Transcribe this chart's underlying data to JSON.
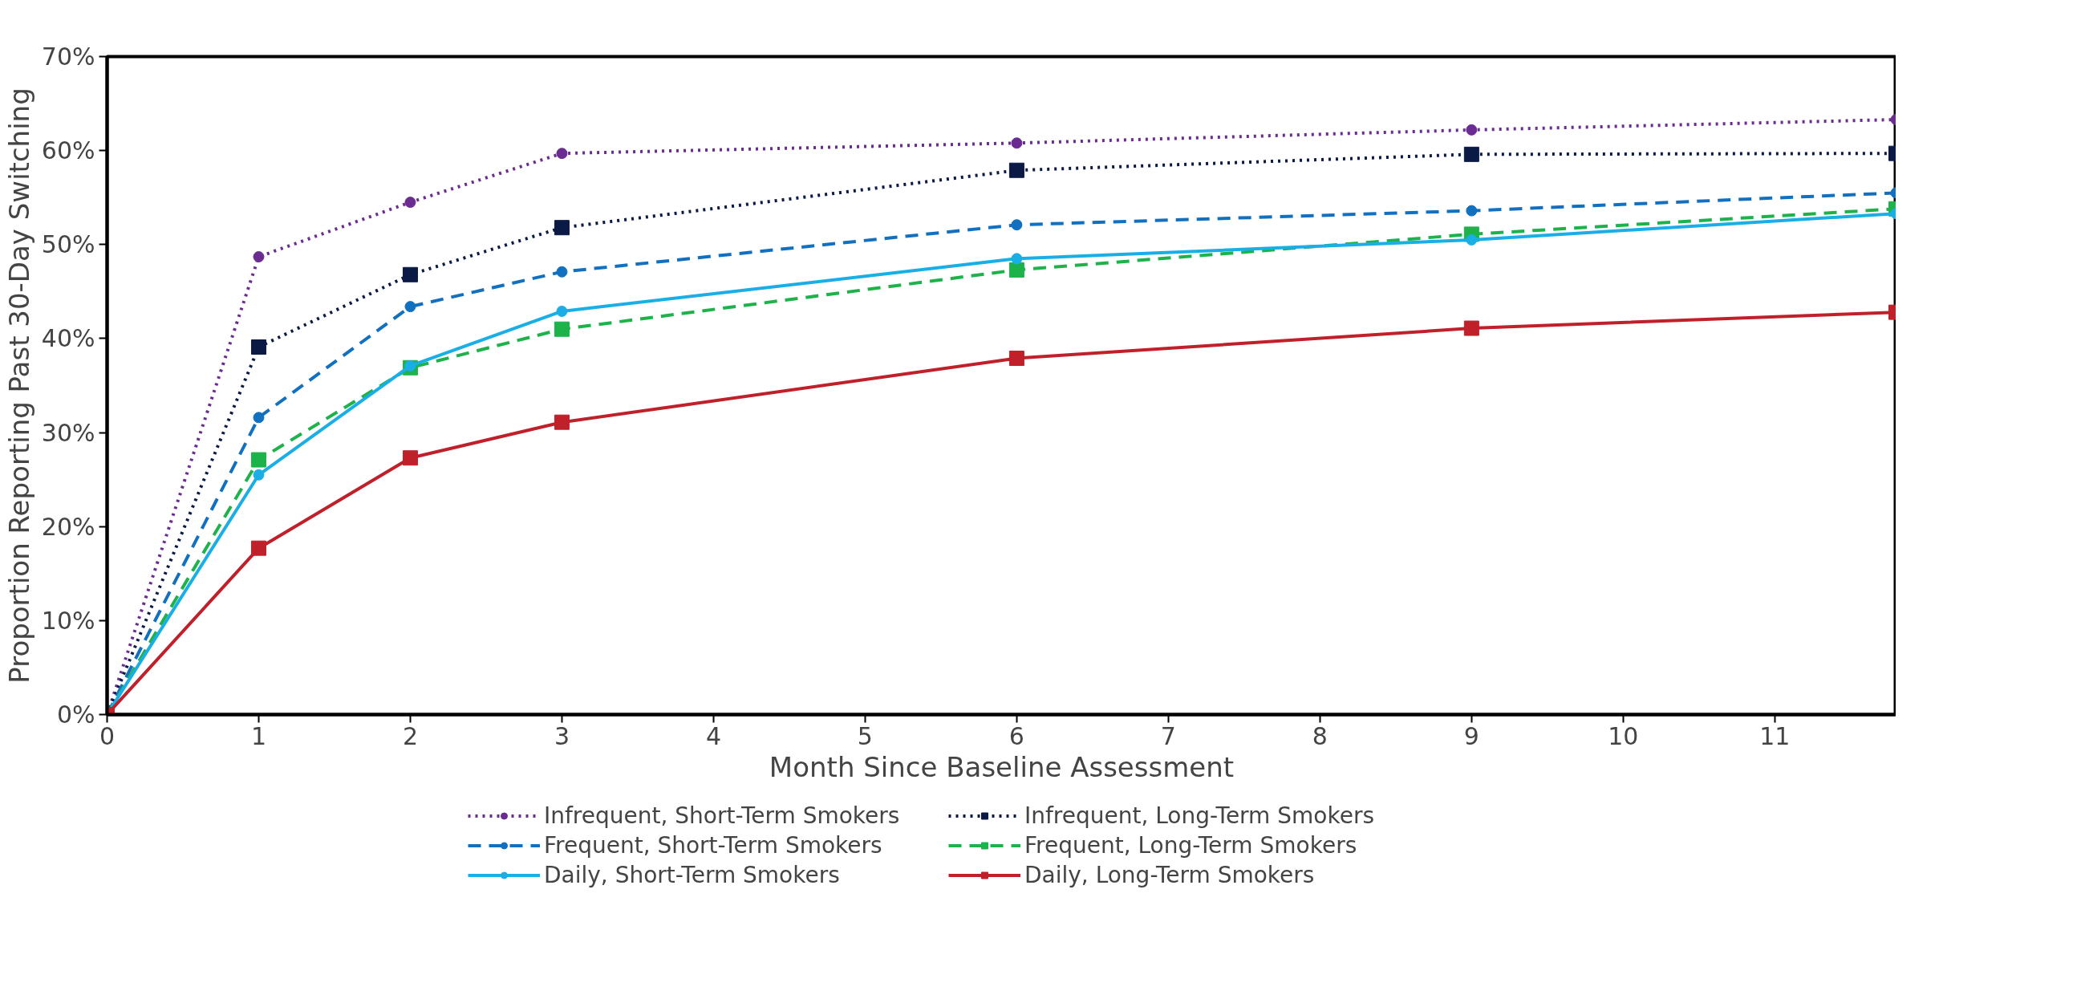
{
  "chart_data": {
    "type": "line",
    "xlabel": "Month Since Baseline Assessment",
    "ylabel": "Proportion Reporting Past 30-Day Switching",
    "x": [
      0,
      1,
      2,
      3,
      6,
      9,
      11.8
    ],
    "series": [
      {
        "name": "Infrequent, Short-Term Smokers",
        "color": "#6a2c91",
        "marker": "circle",
        "line_style": "dotted",
        "values": [
          0,
          48.7,
          54.5,
          59.7,
          60.8,
          62.2,
          63.3
        ]
      },
      {
        "name": "Infrequent, Long-Term Smokers",
        "color": "#0b1a45",
        "marker": "square",
        "line_style": "dotted",
        "values": [
          0,
          39.1,
          46.8,
          51.8,
          57.9,
          59.6,
          59.7
        ]
      },
      {
        "name": "Frequent, Short-Term Smokers",
        "color": "#1170bf",
        "marker": "circle",
        "line_style": "dashed",
        "values": [
          0,
          31.6,
          43.4,
          47.1,
          52.1,
          53.6,
          55.5
        ]
      },
      {
        "name": "Frequent, Long-Term Smokers",
        "color": "#1db34a",
        "marker": "square",
        "line_style": "dashed",
        "values": [
          0,
          27.1,
          36.9,
          41.0,
          47.3,
          51.1,
          53.8
        ]
      },
      {
        "name": "Daily, Short-Term Smokers",
        "color": "#1aaee6",
        "marker": "circle",
        "line_style": "solid",
        "values": [
          0,
          25.5,
          37.1,
          42.9,
          48.5,
          50.5,
          53.3
        ]
      },
      {
        "name": "Daily, Long-Term Smokers",
        "color": "#c0202a",
        "marker": "square",
        "line_style": "solid",
        "values": [
          0,
          17.7,
          27.3,
          31.1,
          37.9,
          41.1,
          42.8
        ]
      }
    ],
    "xlim": [
      0,
      11.8
    ],
    "xticks": [
      0,
      1,
      2,
      3,
      4,
      5,
      6,
      7,
      8,
      9,
      10,
      11
    ],
    "ylim": [
      0,
      70
    ],
    "yticks": [
      {
        "value": 0,
        "label": "0%"
      },
      {
        "value": 10,
        "label": "10%"
      },
      {
        "value": 20,
        "label": "20%"
      },
      {
        "value": 30,
        "label": "30%"
      },
      {
        "value": 40,
        "label": "40%"
      },
      {
        "value": 50,
        "label": "50%"
      },
      {
        "value": 60,
        "label": "60%"
      },
      {
        "value": 70,
        "label": "70%"
      }
    ],
    "grid": false,
    "legend": "bottom"
  }
}
